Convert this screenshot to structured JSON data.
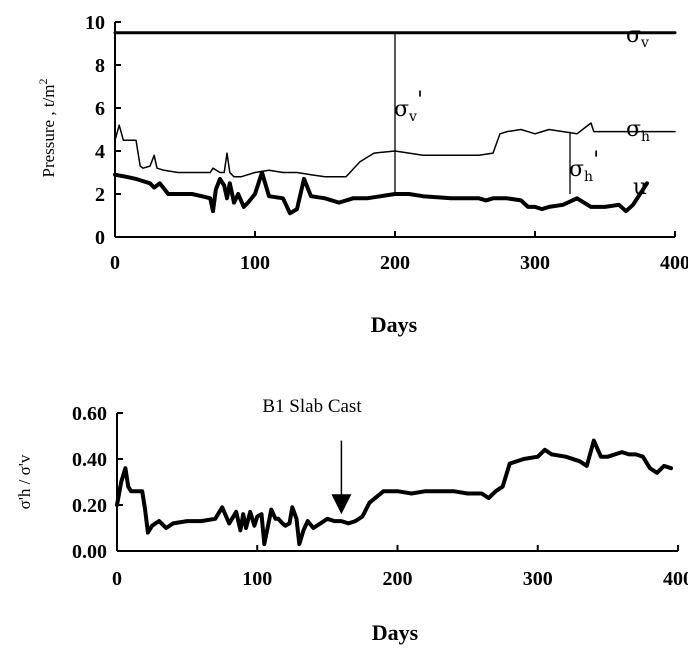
{
  "chart_data": [
    {
      "type": "line",
      "xlabel": "Days",
      "ylabel": "Pressure , t/m",
      "ylabel_sup": "2",
      "xlim": [
        0,
        400
      ],
      "ylim": [
        0,
        10
      ],
      "xticks": [
        "0",
        "100",
        "200",
        "300",
        "400"
      ],
      "yticks": [
        "0",
        "2",
        "4",
        "6",
        "8",
        "10"
      ],
      "grid": false,
      "series": [
        {
          "name": "σ",
          "name_sub": "v",
          "x": [
            0,
            400
          ],
          "y": [
            9.5,
            9.5
          ]
        },
        {
          "name": "σ",
          "name_sub": "h",
          "x": [
            0,
            3,
            6,
            9,
            15,
            18,
            20,
            25,
            28,
            30,
            35,
            45,
            60,
            68,
            70,
            75,
            78,
            80,
            82,
            85,
            90,
            100,
            110,
            120,
            130,
            140,
            150,
            165,
            175,
            185,
            200,
            210,
            220,
            240,
            260,
            270,
            275,
            280,
            290,
            300,
            305,
            310,
            320,
            330,
            340,
            342,
            350,
            360,
            375,
            400
          ],
          "y": [
            4.5,
            5.2,
            4.5,
            4.5,
            4.5,
            3.3,
            3.2,
            3.3,
            3.8,
            3.2,
            3.1,
            3.0,
            3.0,
            3.0,
            3.2,
            3.0,
            3.0,
            3.9,
            3.0,
            2.8,
            2.8,
            3.0,
            3.1,
            3.0,
            3.0,
            2.9,
            2.8,
            2.8,
            3.5,
            3.9,
            4.0,
            3.9,
            3.8,
            3.8,
            3.8,
            3.9,
            4.8,
            4.9,
            5.0,
            4.8,
            4.9,
            5.0,
            4.9,
            4.8,
            5.3,
            4.9,
            4.9,
            4.9,
            4.9,
            4.9
          ]
        },
        {
          "name": "u",
          "x": [
            0,
            8,
            15,
            20,
            25,
            28,
            32,
            38,
            45,
            55,
            62,
            68,
            70,
            72,
            75,
            78,
            80,
            82,
            85,
            88,
            92,
            95,
            100,
            105,
            110,
            120,
            125,
            130,
            135,
            140,
            150,
            160,
            170,
            180,
            190,
            200,
            210,
            220,
            240,
            260,
            265,
            270,
            280,
            290,
            295,
            300,
            305,
            310,
            320,
            330,
            340,
            350,
            360,
            365,
            370,
            380
          ],
          "y": [
            2.9,
            2.8,
            2.7,
            2.6,
            2.5,
            2.3,
            2.5,
            2.0,
            2.0,
            2.0,
            1.9,
            1.8,
            1.2,
            2.2,
            2.7,
            2.4,
            1.8,
            2.5,
            1.6,
            2.0,
            1.4,
            1.6,
            2.0,
            3.0,
            1.9,
            1.8,
            1.1,
            1.3,
            2.7,
            1.9,
            1.8,
            1.6,
            1.8,
            1.8,
            1.9,
            2.0,
            2.0,
            1.9,
            1.8,
            1.8,
            1.7,
            1.8,
            1.8,
            1.7,
            1.4,
            1.4,
            1.3,
            1.4,
            1.5,
            1.8,
            1.4,
            1.4,
            1.5,
            1.2,
            1.5,
            2.5
          ]
        }
      ],
      "annotations": {
        "sigma_v_eff": {
          "label": "σ",
          "sub": "v",
          "prime": "'",
          "x": 200,
          "y_from": 2.0,
          "y_to": 9.5
        },
        "sigma_h_eff": {
          "label": "σ",
          "sub": "h",
          "prime": "'",
          "x": 325,
          "y_from": 2.0,
          "y_to": 4.9
        }
      }
    },
    {
      "type": "line",
      "xlabel": "Days",
      "ylabel": "σ'h / σ'v",
      "xlim": [
        0,
        400
      ],
      "ylim": [
        0,
        0.6
      ],
      "xticks": [
        "0",
        "100",
        "200",
        "300",
        "400"
      ],
      "yticks": [
        "0.00",
        "0.20",
        "0.40",
        "0.60"
      ],
      "grid": false,
      "series": [
        {
          "name": "",
          "x": [
            0,
            3,
            6,
            8,
            10,
            12,
            15,
            18,
            20,
            22,
            25,
            30,
            35,
            40,
            50,
            60,
            70,
            75,
            80,
            85,
            88,
            90,
            92,
            95,
            98,
            100,
            103,
            105,
            108,
            110,
            113,
            115,
            118,
            120,
            123,
            125,
            128,
            130,
            133,
            136,
            140,
            145,
            150,
            155,
            160,
            165,
            170,
            175,
            180,
            190,
            200,
            210,
            220,
            230,
            240,
            250,
            260,
            265,
            270,
            275,
            280,
            290,
            300,
            305,
            310,
            320,
            330,
            335,
            340,
            345,
            350,
            360,
            365,
            370,
            375,
            380,
            385,
            390,
            395
          ],
          "y": [
            0.2,
            0.3,
            0.36,
            0.28,
            0.26,
            0.26,
            0.26,
            0.26,
            0.18,
            0.08,
            0.11,
            0.13,
            0.1,
            0.12,
            0.13,
            0.13,
            0.14,
            0.19,
            0.12,
            0.17,
            0.09,
            0.16,
            0.1,
            0.17,
            0.11,
            0.15,
            0.16,
            0.03,
            0.12,
            0.18,
            0.14,
            0.14,
            0.12,
            0.11,
            0.12,
            0.19,
            0.14,
            0.03,
            0.09,
            0.13,
            0.1,
            0.12,
            0.14,
            0.13,
            0.13,
            0.12,
            0.13,
            0.15,
            0.21,
            0.26,
            0.26,
            0.25,
            0.26,
            0.26,
            0.26,
            0.25,
            0.25,
            0.23,
            0.26,
            0.28,
            0.38,
            0.4,
            0.41,
            0.44,
            0.42,
            0.41,
            0.39,
            0.37,
            0.48,
            0.41,
            0.41,
            0.43,
            0.42,
            0.42,
            0.41,
            0.36,
            0.34,
            0.37,
            0.36
          ]
        }
      ],
      "annotations": {
        "slab_cast": {
          "text": "B1 Slab Cast",
          "x": 160,
          "y_from": 0.48,
          "y_to": 0.16
        }
      }
    }
  ]
}
